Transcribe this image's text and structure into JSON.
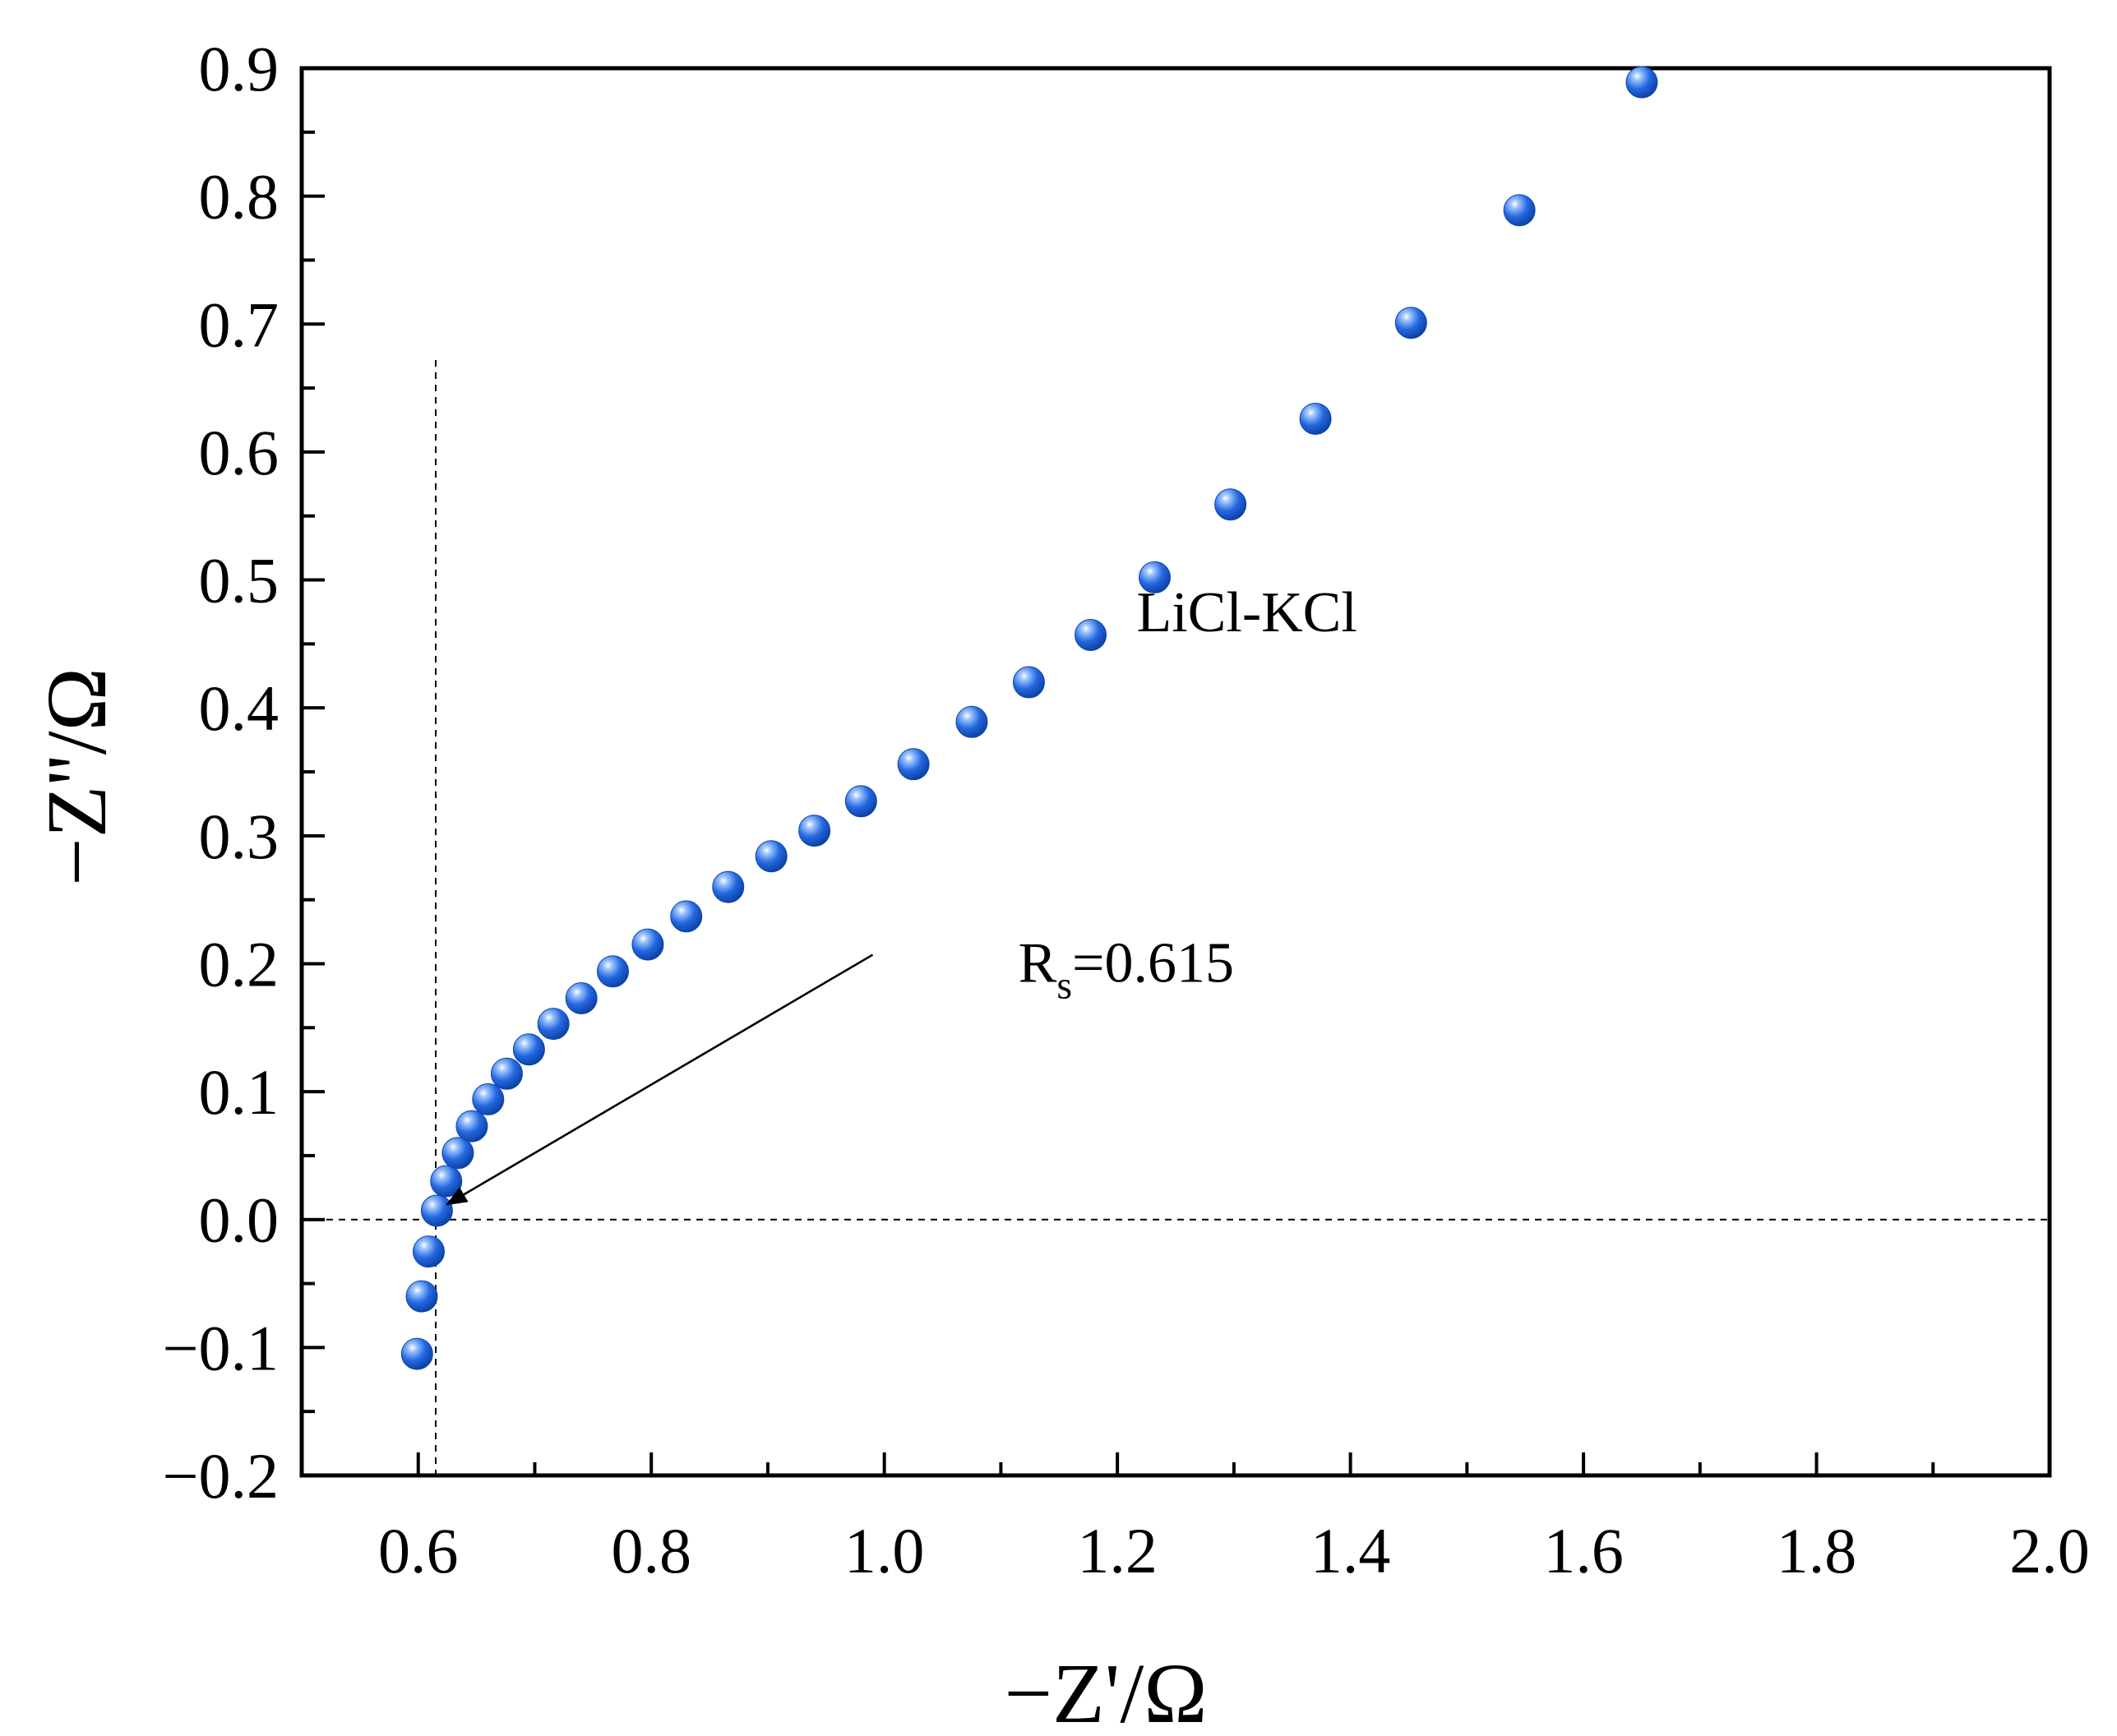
{
  "chart_data": {
    "type": "scatter",
    "title": "",
    "xlabel": "−Z'/Ω",
    "ylabel": "−Z''/Ω",
    "xlim": [
      0.5,
      2.0
    ],
    "ylim": [
      -0.2,
      0.9
    ],
    "x_ticks": [
      0.6,
      0.8,
      1.0,
      1.2,
      1.4,
      1.6,
      1.8,
      2.0
    ],
    "x_tick_labels": [
      "0.6",
      "0.8",
      "1.0",
      "1.2",
      "1.4",
      "1.6",
      "1.8",
      "2.0"
    ],
    "y_ticks": [
      -0.2,
      -0.1,
      0.0,
      0.1,
      0.2,
      0.3,
      0.4,
      0.5,
      0.6,
      0.7,
      0.8,
      0.9
    ],
    "y_tick_labels": [
      "−0.2",
      "−0.1",
      "0.0",
      "0.1",
      "0.2",
      "0.3",
      "0.4",
      "0.5",
      "0.6",
      "0.7",
      "0.8",
      "0.9"
    ],
    "grid": false,
    "series": [
      {
        "name": "LiCl-KCl",
        "color": "#1a5fd6",
        "points": [
          [
            0.599,
            -0.105
          ],
          [
            0.603,
            -0.06
          ],
          [
            0.609,
            -0.025
          ],
          [
            0.616,
            0.007
          ],
          [
            0.624,
            0.03
          ],
          [
            0.634,
            0.052
          ],
          [
            0.646,
            0.073
          ],
          [
            0.66,
            0.094
          ],
          [
            0.676,
            0.114
          ],
          [
            0.695,
            0.133
          ],
          [
            0.716,
            0.153
          ],
          [
            0.74,
            0.173
          ],
          [
            0.767,
            0.194
          ],
          [
            0.797,
            0.215
          ],
          [
            0.83,
            0.237
          ],
          [
            0.866,
            0.26
          ],
          [
            0.903,
            0.284
          ],
          [
            0.94,
            0.304
          ],
          [
            0.98,
            0.327
          ],
          [
            1.025,
            0.356
          ],
          [
            1.075,
            0.389
          ],
          [
            1.124,
            0.42
          ],
          [
            1.177,
            0.457
          ],
          [
            1.232,
            0.502
          ],
          [
            1.297,
            0.559
          ],
          [
            1.37,
            0.626
          ],
          [
            1.452,
            0.701
          ],
          [
            1.545,
            0.789
          ],
          [
            1.65,
            0.889
          ]
        ]
      }
    ],
    "reference_lines": {
      "vertical_x": 0.615,
      "horizontal_y": 0.0
    },
    "annotations": {
      "series_label": "LiCl-KCl",
      "series_label_at": [
        1.22,
        0.46
      ],
      "rs_main": "R",
      "rs_sub": "s",
      "rs_value": "=0.615",
      "rs_label_at": [
        1.115,
        0.2
      ],
      "arrow_from": [
        0.99,
        0.207
      ],
      "arrow_to": [
        0.625,
        0.012
      ]
    }
  }
}
